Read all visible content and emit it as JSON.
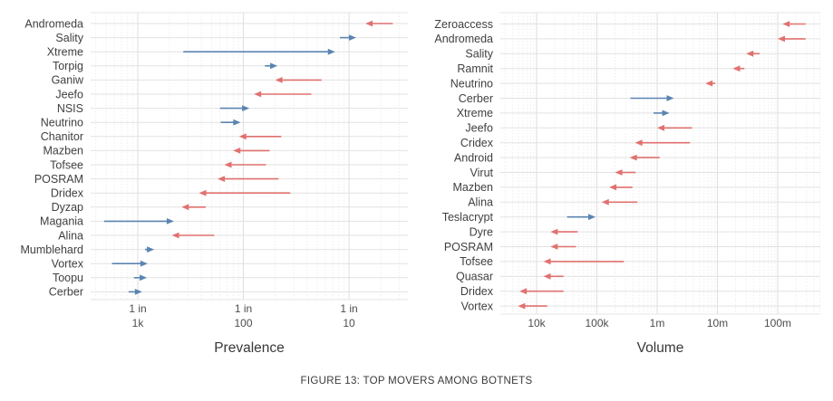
{
  "figure": {
    "caption": "FIGURE 13: TOP MOVERS AMONG BOTNETS"
  },
  "colors": {
    "increase_arrow": "#5b84b1",
    "decrease_arrow": "#e0716f",
    "grid_major": "#e2e2e2",
    "grid_minor": "#eeeeee",
    "panel_edge": "#e4e4e4",
    "category_text": "#3f3f3f",
    "tick_text": "#4d4d4d",
    "axis_title_text": "#383838",
    "background": "#ffffff"
  },
  "chart_data": [
    {
      "type": "arrow",
      "title": "",
      "xlabel": "Prevalence",
      "x_scale": "log",
      "x_range": [
        0.00038,
        0.35
      ],
      "grid": true,
      "x_ticks": [
        {
          "value": 0.001,
          "label_lines": [
            "1 in",
            "1k"
          ]
        },
        {
          "value": 0.01,
          "label_lines": [
            "1 in",
            "100"
          ]
        },
        {
          "value": 0.1,
          "label_lines": [
            "1 in",
            "10"
          ]
        }
      ],
      "arrows": [
        {
          "name": "Andromeda",
          "from": 0.26,
          "to": 0.143
        },
        {
          "name": "Sality",
          "from": 0.082,
          "to": 0.117
        },
        {
          "name": "Xtreme",
          "from": 0.0027,
          "to": 0.074
        },
        {
          "name": "Torpig",
          "from": 0.016,
          "to": 0.021
        },
        {
          "name": "Ganiw",
          "from": 0.055,
          "to": 0.02
        },
        {
          "name": "Jeefo",
          "from": 0.044,
          "to": 0.0126
        },
        {
          "name": "NSIS",
          "from": 0.006,
          "to": 0.0114
        },
        {
          "name": "Neutrino",
          "from": 0.0061,
          "to": 0.0094
        },
        {
          "name": "Chanitor",
          "from": 0.0228,
          "to": 0.0091
        },
        {
          "name": "Mazben",
          "from": 0.0177,
          "to": 0.008
        },
        {
          "name": "Tofsee",
          "from": 0.0164,
          "to": 0.0066
        },
        {
          "name": "POSRAM",
          "from": 0.0215,
          "to": 0.0057
        },
        {
          "name": "Dridex",
          "from": 0.0278,
          "to": 0.0038
        },
        {
          "name": "Dyzap",
          "from": 0.0044,
          "to": 0.0026
        },
        {
          "name": "Magania",
          "from": 0.00048,
          "to": 0.0022
        },
        {
          "name": "Alina",
          "from": 0.0053,
          "to": 0.0021
        },
        {
          "name": "Mumblehard",
          "from": 0.00117,
          "to": 0.00143
        },
        {
          "name": "Vortex",
          "from": 0.00057,
          "to": 0.00124
        },
        {
          "name": "Toopu",
          "from": 0.00092,
          "to": 0.00122
        },
        {
          "name": "Cerber",
          "from": 0.00082,
          "to": 0.0011
        }
      ]
    },
    {
      "type": "arrow",
      "title": "",
      "xlabel": "Volume",
      "x_scale": "log",
      "x_range": [
        2500,
        440000000
      ],
      "grid": true,
      "x_ticks": [
        {
          "value": 10000,
          "label_lines": [
            "10k"
          ]
        },
        {
          "value": 100000,
          "label_lines": [
            "100k"
          ]
        },
        {
          "value": 1000000,
          "label_lines": [
            "1m"
          ]
        },
        {
          "value": 10000000,
          "label_lines": [
            "10m"
          ]
        },
        {
          "value": 100000000,
          "label_lines": [
            "100m"
          ]
        }
      ],
      "arrows": [
        {
          "name": "Zeroaccess",
          "from": 290000000,
          "to": 120000000
        },
        {
          "name": "Andromeda",
          "from": 290000000,
          "to": 100000000
        },
        {
          "name": "Sality",
          "from": 50000000,
          "to": 30000000
        },
        {
          "name": "Ramnit",
          "from": 28000000,
          "to": 18000000
        },
        {
          "name": "Neutrino",
          "from": 9200000,
          "to": 6300000
        },
        {
          "name": "Cerber",
          "from": 360000,
          "to": 1900000
        },
        {
          "name": "Xtreme",
          "from": 870000,
          "to": 1600000
        },
        {
          "name": "Jeefo",
          "from": 3800000,
          "to": 1000000
        },
        {
          "name": "Cridex",
          "from": 3500000,
          "to": 430000
        },
        {
          "name": "Android",
          "from": 1100000,
          "to": 350000
        },
        {
          "name": "Virut",
          "from": 440000,
          "to": 200000
        },
        {
          "name": "Mazben",
          "from": 390000,
          "to": 160000
        },
        {
          "name": "Alina",
          "from": 470000,
          "to": 120000
        },
        {
          "name": "Teslacrypt",
          "from": 32000,
          "to": 95000
        },
        {
          "name": "Dyre",
          "from": 48000,
          "to": 17000
        },
        {
          "name": "POSRAM",
          "from": 45000,
          "to": 17000
        },
        {
          "name": "Tofsee",
          "from": 280000,
          "to": 13000
        },
        {
          "name": "Quasar",
          "from": 28000,
          "to": 13000
        },
        {
          "name": "Dridex",
          "from": 28000,
          "to": 5200
        },
        {
          "name": "Vortex",
          "from": 15000,
          "to": 4900
        }
      ]
    }
  ]
}
